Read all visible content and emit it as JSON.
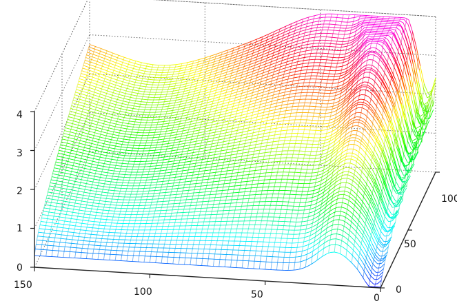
{
  "chart_data": {
    "type": "surface",
    "title": "",
    "xlabel": "",
    "ylabel": "",
    "zlabel": "",
    "grid": true,
    "colormap": "hsv",
    "xlim": [
      0,
      150
    ],
    "ylim": [
      0,
      100
    ],
    "zlim": [
      0,
      4
    ],
    "x_ticks": [
      "150",
      "100",
      "50",
      "0"
    ],
    "y_ticks": [
      "0",
      "50",
      "100"
    ],
    "z_ticks": [
      "0",
      "1",
      "2",
      "3",
      "4"
    ],
    "surface_peak": {
      "x": 45,
      "y": 95,
      "z": 3.9
    },
    "sample_profiles": [
      {
        "y": 0,
        "x": [
          150,
          100,
          50,
          20,
          5
        ],
        "z": [
          0.3,
          0.4,
          0.6,
          0.7,
          0.6
        ]
      },
      {
        "y": 50,
        "x": [
          150,
          100,
          50,
          20,
          5
        ],
        "z": [
          2.2,
          1.9,
          2.1,
          2.9,
          1.4
        ]
      },
      {
        "y": 100,
        "x": [
          150,
          100,
          50,
          20,
          5
        ],
        "z": [
          3.0,
          2.8,
          3.5,
          3.8,
          2.3
        ]
      }
    ]
  }
}
